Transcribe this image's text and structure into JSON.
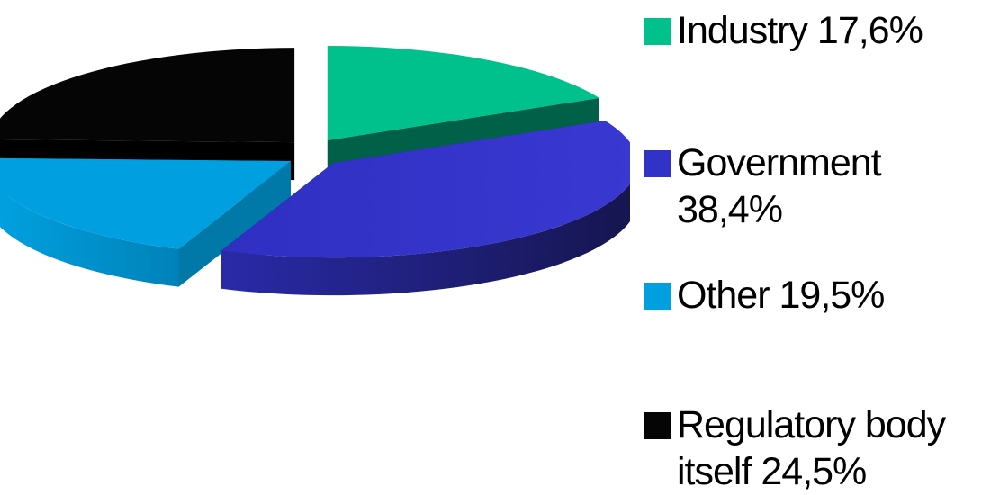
{
  "chart_data": {
    "type": "pie",
    "title": "",
    "slices": [
      {
        "label": "Industry 17,6%",
        "value": 17.6,
        "color": "#00c08b",
        "side": "#006048"
      },
      {
        "label": "Government 38,4%",
        "value": 38.4,
        "color": "#3232c8",
        "side": "#1a1a66"
      },
      {
        "label": "Other 19,5%",
        "value": 19.5,
        "color": "#00a0e0",
        "side": "#0078a8"
      },
      {
        "label": "Regulatory body itself 24,5%",
        "value": 24.5,
        "color": "#050505",
        "side": "#000000"
      }
    ],
    "legend_position": "right",
    "exploded": true,
    "three_d": true
  }
}
